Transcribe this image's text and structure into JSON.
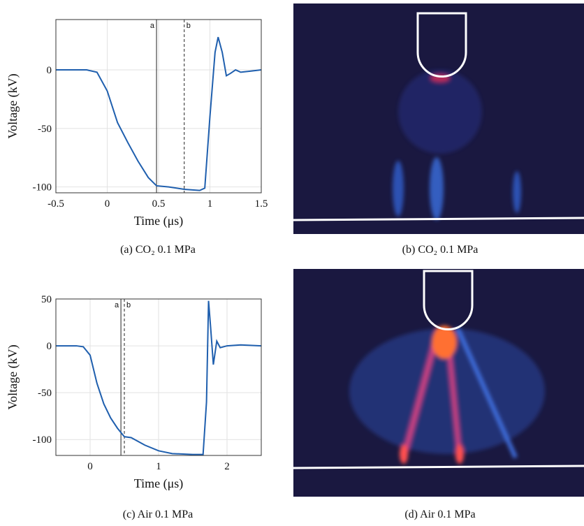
{
  "chart_data": [
    {
      "type": "line",
      "xlabel": "Time (μs)",
      "ylabel": "Voltage (kV)",
      "caption": "(a) CO₂ 0.1 MPa",
      "color": "#1f5fae",
      "grid": true,
      "x": [
        -0.5,
        -0.2,
        -0.1,
        0,
        0.1,
        0.2,
        0.3,
        0.4,
        0.48,
        0.6,
        0.75,
        0.9,
        0.95,
        1.0,
        1.05,
        1.08,
        1.12,
        1.16,
        1.2,
        1.25,
        1.3,
        1.4,
        1.5
      ],
      "values": [
        0,
        0,
        -2,
        -18,
        -45,
        -62,
        -78,
        -92,
        -99,
        -100,
        -102,
        -103,
        -101,
        -40,
        15,
        28,
        15,
        -5,
        -3,
        0,
        -2,
        -1,
        0
      ],
      "xlim": [
        -0.5,
        1.5
      ],
      "ylim": [
        -105,
        43
      ],
      "xticks": [
        -0.5,
        0,
        0.5,
        1,
        1.5
      ],
      "yticks": [
        -100,
        -50,
        0
      ],
      "markers": [
        {
          "label": "a",
          "x": 0.48,
          "style": "solid"
        },
        {
          "label": "b",
          "x": 0.75,
          "style": "dashed"
        }
      ]
    },
    {
      "type": "line",
      "xlabel": "Time (μs)",
      "ylabel": "Voltage (kV)",
      "caption": "(c) Air 0.1 MPa",
      "color": "#1f5fae",
      "grid": true,
      "x": [
        -0.5,
        -0.2,
        -0.1,
        0,
        0.1,
        0.2,
        0.3,
        0.4,
        0.5,
        0.6,
        0.8,
        1.0,
        1.2,
        1.5,
        1.65,
        1.7,
        1.73,
        1.76,
        1.8,
        1.85,
        1.9,
        2.0,
        2.2,
        2.5
      ],
      "values": [
        0,
        0,
        -1,
        -10,
        -40,
        -62,
        -77,
        -88,
        -97,
        -98,
        -106,
        -112,
        -115,
        -116,
        -116,
        -60,
        48,
        20,
        -20,
        5,
        -2,
        0,
        1,
        0
      ],
      "xlim": [
        -0.5,
        2.5
      ],
      "ylim": [
        -117,
        50
      ],
      "xticks": [
        0,
        1,
        2
      ],
      "yticks": [
        -100,
        -50,
        0,
        50
      ],
      "markers": [
        {
          "label": "a",
          "x": 0.45,
          "style": "solid"
        },
        {
          "label": "b",
          "x": 0.5,
          "style": "dashed"
        }
      ]
    }
  ],
  "images": [
    {
      "caption": "(b) CO₂ 0.1 MPa"
    },
    {
      "caption": "(d) Air 0.1 MPa"
    }
  ]
}
